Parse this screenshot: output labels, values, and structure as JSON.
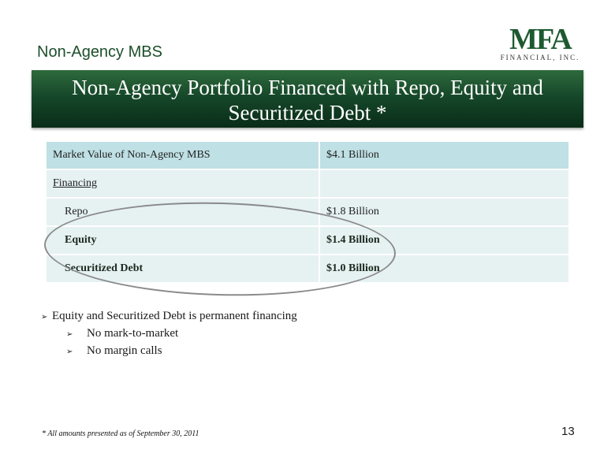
{
  "header": {
    "section_label": "Non-Agency MBS",
    "logo_mark": "MFA",
    "logo_sub": "FINANCIAL, INC."
  },
  "banner": {
    "title_line1": "Non-Agency Portfolio Financed with Repo, Equity and",
    "title_line2": "Securitized Debt *"
  },
  "table": {
    "rows": [
      {
        "label": "Market Value of Non-Agency MBS",
        "value": "$4.1 Billion"
      },
      {
        "label": "Financing",
        "value": ""
      },
      {
        "label": "Repo",
        "value": "$1.8 Billion"
      },
      {
        "label": "Equity",
        "value": "$1.4 Billion"
      },
      {
        "label": "Securitized Debt",
        "value": "$1.0 Billion"
      }
    ]
  },
  "bullets": {
    "main": "Equity and Securitized Debt is permanent financing",
    "subs": [
      "No mark-to-market",
      "No margin calls"
    ]
  },
  "footnote": "* All amounts presented as of September 30, 2011",
  "page_number": "13",
  "colors": {
    "banner_green": "#16482a",
    "row_dark": "#bfe0e4",
    "row_light": "#e6f1f2"
  }
}
